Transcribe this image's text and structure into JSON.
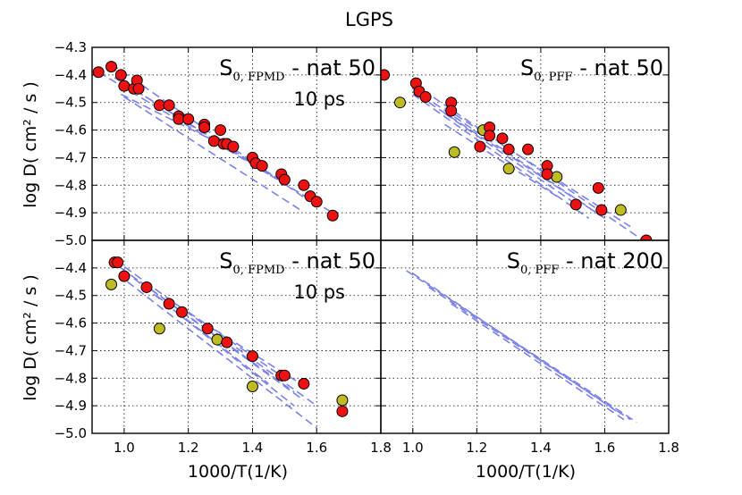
{
  "chart_data": {
    "type": "scatter",
    "title": "LGPS",
    "xlabel": "1000/T(1/K)",
    "ylabel": "log D( cm² / s )",
    "colors": {
      "red": "#ee1111",
      "olive": "#bfbb22",
      "dash": "#7b82e8"
    },
    "panels": [
      {
        "id": "top-left",
        "xlim": [
          0.9,
          1.8
        ],
        "ylim": [
          -5.0,
          -4.3
        ],
        "xticks": [],
        "yticks": [
          "-4.3",
          "-4.4",
          "-4.5",
          "-4.6",
          "-4.7",
          "-4.8",
          "-4.9",
          "-5.0"
        ],
        "annotation": {
          "main": "S",
          "sub": "0, FPMD",
          "rest": " - nat 50",
          "extra": "10 ps"
        },
        "red": [
          [
            0.92,
            -4.39
          ],
          [
            0.96,
            -4.37
          ],
          [
            0.99,
            -4.4
          ],
          [
            1.0,
            -4.44
          ],
          [
            1.03,
            -4.45
          ],
          [
            1.04,
            -4.42
          ],
          [
            1.045,
            -4.45
          ],
          [
            1.11,
            -4.51
          ],
          [
            1.14,
            -4.51
          ],
          [
            1.17,
            -4.55
          ],
          [
            1.17,
            -4.56
          ],
          [
            1.2,
            -4.56
          ],
          [
            1.25,
            -4.58
          ],
          [
            1.25,
            -4.59
          ],
          [
            1.28,
            -4.64
          ],
          [
            1.3,
            -4.6
          ],
          [
            1.31,
            -4.65
          ],
          [
            1.32,
            -4.65
          ],
          [
            1.34,
            -4.66
          ],
          [
            1.4,
            -4.7
          ],
          [
            1.41,
            -4.72
          ],
          [
            1.43,
            -4.73
          ],
          [
            1.49,
            -4.76
          ],
          [
            1.5,
            -4.78
          ],
          [
            1.56,
            -4.8
          ],
          [
            1.58,
            -4.84
          ],
          [
            1.6,
            -4.86
          ],
          [
            1.65,
            -4.91
          ]
        ],
        "olive": [],
        "lines": [
          [
            [
              0.92,
              -4.39
            ],
            [
              1.65,
              -4.9
            ]
          ],
          [
            [
              0.96,
              -4.36
            ],
            [
              1.58,
              -4.86
            ]
          ],
          [
            [
              0.97,
              -4.41
            ],
            [
              1.5,
              -4.79
            ]
          ],
          [
            [
              1.0,
              -4.43
            ],
            [
              1.45,
              -4.76
            ]
          ],
          [
            [
              0.99,
              -4.47
            ],
            [
              1.35,
              -4.68
            ]
          ],
          [
            [
              1.0,
              -4.48
            ],
            [
              1.55,
              -4.89
            ]
          ]
        ]
      },
      {
        "id": "top-right",
        "xlim": [
          0.9,
          1.8
        ],
        "ylim": [
          -5.0,
          -4.3
        ],
        "xticks": [],
        "yticks": [],
        "annotation": {
          "main": "S",
          "sub": "0, PFF",
          "rest": " - nat 50",
          "extra": ""
        },
        "red": [
          [
            0.91,
            -4.4
          ],
          [
            1.01,
            -4.43
          ],
          [
            1.02,
            -4.46
          ],
          [
            1.04,
            -4.48
          ],
          [
            1.12,
            -4.5
          ],
          [
            1.12,
            -4.53
          ],
          [
            1.24,
            -4.59
          ],
          [
            1.24,
            -4.62
          ],
          [
            1.21,
            -4.66
          ],
          [
            1.28,
            -4.63
          ],
          [
            1.3,
            -4.67
          ],
          [
            1.36,
            -4.67
          ],
          [
            1.42,
            -4.73
          ],
          [
            1.42,
            -4.76
          ],
          [
            1.51,
            -4.87
          ],
          [
            1.58,
            -4.81
          ],
          [
            1.59,
            -4.89
          ],
          [
            1.73,
            -5.0
          ]
        ],
        "olive": [
          [
            0.96,
            -4.5
          ],
          [
            1.13,
            -4.68
          ],
          [
            1.22,
            -4.6
          ],
          [
            1.3,
            -4.74
          ],
          [
            1.45,
            -4.77
          ],
          [
            1.65,
            -4.89
          ]
        ],
        "lines": [
          [
            [
              1.0,
              -4.43
            ],
            [
              1.72,
              -5.0
            ]
          ],
          [
            [
              1.0,
              -4.45
            ],
            [
              1.6,
              -4.92
            ]
          ],
          [
            [
              1.0,
              -4.47
            ],
            [
              1.55,
              -4.92
            ]
          ],
          [
            [
              1.05,
              -4.5
            ],
            [
              1.6,
              -4.92
            ]
          ],
          [
            [
              1.1,
              -4.52
            ],
            [
              1.68,
              -4.95
            ]
          ],
          [
            [
              1.1,
              -4.54
            ],
            [
              1.5,
              -4.86
            ]
          ],
          [
            [
              1.1,
              -4.58
            ],
            [
              1.45,
              -4.84
            ]
          ]
        ]
      },
      {
        "id": "bottom-left",
        "xlim": [
          0.9,
          1.8
        ],
        "ylim": [
          -5.0,
          -4.3
        ],
        "xticks": [
          "1.0",
          "1.2",
          "1.4",
          "1.6",
          "1.8"
        ],
        "yticks": [
          "-4.4",
          "-4.5",
          "-4.6",
          "-4.7",
          "-4.8",
          "-4.9",
          "-5.0"
        ],
        "annotation": {
          "main": "S",
          "sub": "0, FPMD",
          "rest": " - nat 50",
          "extra": "10 ps"
        },
        "red": [
          [
            0.97,
            -4.38
          ],
          [
            0.98,
            -4.38
          ],
          [
            1.0,
            -4.43
          ],
          [
            1.07,
            -4.47
          ],
          [
            1.14,
            -4.53
          ],
          [
            1.18,
            -4.56
          ],
          [
            1.26,
            -4.62
          ],
          [
            1.32,
            -4.67
          ],
          [
            1.4,
            -4.72
          ],
          [
            1.49,
            -4.79
          ],
          [
            1.5,
            -4.79
          ],
          [
            1.56,
            -4.82
          ],
          [
            1.68,
            -4.92
          ]
        ],
        "olive": [
          [
            0.96,
            -4.46
          ],
          [
            1.11,
            -4.62
          ],
          [
            1.29,
            -4.66
          ],
          [
            1.4,
            -4.83
          ],
          [
            1.68,
            -4.88
          ]
        ],
        "lines": [
          [
            [
              0.97,
              -4.37
            ],
            [
              1.6,
              -4.9
            ]
          ],
          [
            [
              0.99,
              -4.4
            ],
            [
              1.56,
              -4.88
            ]
          ],
          [
            [
              1.0,
              -4.41
            ],
            [
              1.53,
              -4.9
            ]
          ],
          [
            [
              1.01,
              -4.45
            ],
            [
              1.6,
              -4.98
            ]
          ],
          [
            [
              1.05,
              -4.45
            ],
            [
              1.53,
              -4.85
            ]
          ],
          [
            [
              1.1,
              -4.5
            ],
            [
              1.45,
              -4.82
            ]
          ],
          [
            [
              1.2,
              -4.56
            ],
            [
              1.5,
              -4.8
            ]
          ],
          [
            [
              1.25,
              -4.6
            ],
            [
              1.55,
              -4.82
            ]
          ]
        ]
      },
      {
        "id": "bottom-right",
        "xlim": [
          0.9,
          1.8
        ],
        "ylim": [
          -5.0,
          -4.3
        ],
        "xticks": [
          "1.0",
          "1.2",
          "1.4",
          "1.6",
          "1.8"
        ],
        "yticks": [],
        "annotation": {
          "main": "S",
          "sub": "0, PFF",
          "rest": " - nat 200",
          "extra": ""
        },
        "red": [],
        "olive": [],
        "lines": [
          [
            [
              0.98,
              -4.41
            ],
            [
              1.7,
              -4.96
            ]
          ],
          [
            [
              1.0,
              -4.42
            ],
            [
              1.65,
              -4.93
            ]
          ],
          [
            [
              1.05,
              -4.47
            ],
            [
              1.68,
              -4.95
            ]
          ],
          [
            [
              1.12,
              -4.53
            ],
            [
              1.66,
              -4.95
            ]
          ]
        ]
      }
    ]
  }
}
